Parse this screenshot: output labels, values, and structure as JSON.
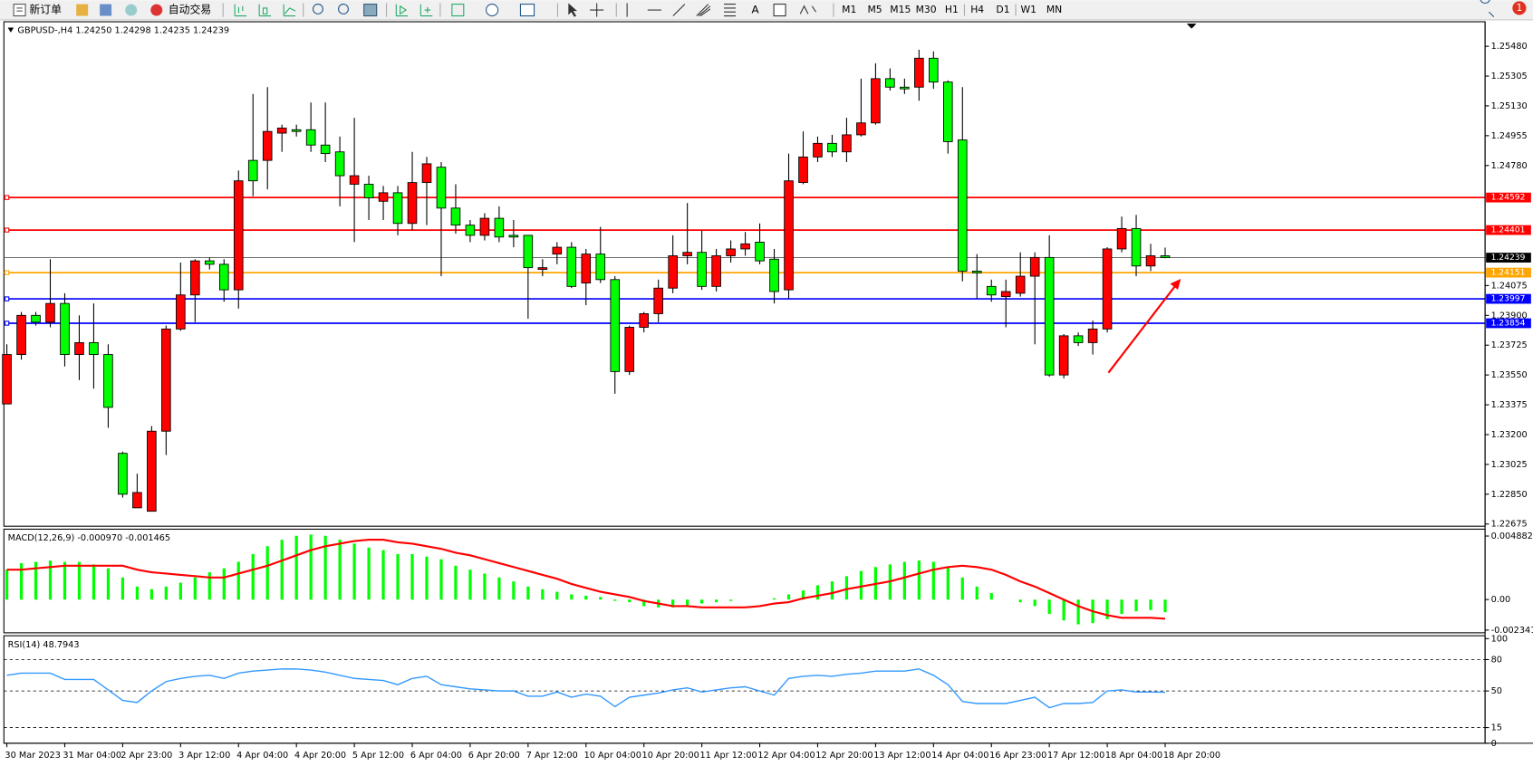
{
  "toolbar": {
    "new_order": "新订单",
    "auto_trading": "自动交易",
    "text_tool": "A",
    "timeframes": [
      "M1",
      "M5",
      "M15",
      "M30",
      "H1",
      "H4",
      "D1",
      "W1",
      "MN"
    ],
    "notifications": 1
  },
  "chart_data": [
    {
      "type": "candlestick",
      "title": "GBPUSD-,H4  1.24250 1.24298 1.24235 1.24239",
      "categories": [
        "30 Mar 2023",
        null,
        null,
        null,
        "31 Mar 04:00",
        null,
        null,
        null,
        "2 Apr 23:00",
        null,
        null,
        null,
        "3 Apr 12:00",
        null,
        null,
        null,
        "4 Apr 04:00",
        null,
        null,
        null,
        "4 Apr 20:00",
        null,
        null,
        null,
        "5 Apr 12:00",
        null,
        null,
        null,
        "6 Apr 04:00",
        null,
        null,
        null,
        "6 Apr 20:00",
        null,
        null,
        null,
        "7 Apr 12:00",
        null,
        null,
        null,
        "10 Apr 04:00",
        null,
        null,
        null,
        "10 Apr 20:00",
        null,
        null,
        null,
        "11 Apr 12:00",
        null,
        null,
        null,
        "12 Apr 04:00",
        null,
        null,
        null,
        "12 Apr 20:00",
        null,
        null,
        null,
        "13 Apr 12:00",
        null,
        null,
        null,
        "14 Apr 04:00",
        null,
        null,
        null,
        "16 Apr 23:00",
        null,
        null,
        null,
        "17 Apr 12:00",
        null,
        null,
        null,
        "18 Apr 04:00",
        null,
        null,
        null,
        "18 Apr 20:00"
      ],
      "open": [
        1.2338,
        1.2367,
        1.239,
        1.2386,
        1.2397,
        1.2367,
        1.2374,
        1.2367,
        1.2309,
        1.2277,
        1.2275,
        1.2322,
        1.2382,
        1.2402,
        1.2422,
        1.242,
        1.2405,
        1.2481,
        1.2481,
        1.2497,
        1.2499,
        1.2499,
        1.249,
        1.2486,
        1.2467,
        1.2467,
        1.2457,
        1.2462,
        1.2444,
        1.2468,
        1.2477,
        1.2453,
        1.2443,
        1.2437,
        1.2447,
        1.2437,
        1.2437,
        1.2417,
        1.2426,
        1.243,
        1.2409,
        1.2426,
        1.2411,
        1.2357,
        1.2383,
        1.2391,
        1.2406,
        1.2425,
        1.2427,
        1.2407,
        1.2425,
        1.2429,
        1.2433,
        1.2423,
        1.2405,
        1.2468,
        1.2483,
        1.2491,
        1.2486,
        1.2496,
        1.2503,
        1.2529,
        1.2524,
        1.2524,
        1.2541,
        1.2527,
        1.2493,
        1.2416,
        1.2407,
        1.2401,
        1.2403,
        1.2413,
        1.2424,
        1.2355,
        1.2378,
        1.2374,
        1.2382,
        1.2429,
        1.2441,
        1.2419,
        1.2425
      ],
      "high": [
        1.2373,
        1.2392,
        1.2392,
        1.2423,
        1.2403,
        1.239,
        1.2397,
        1.2373,
        1.231,
        1.2297,
        1.2325,
        1.2384,
        1.2421,
        1.2423,
        1.2424,
        1.2423,
        1.2475,
        1.252,
        1.2524,
        1.2502,
        1.2502,
        1.2515,
        1.2515,
        1.2495,
        1.2506,
        1.2472,
        1.2466,
        1.2466,
        1.2486,
        1.2483,
        1.248,
        1.2467,
        1.2446,
        1.245,
        1.2454,
        1.2446,
        1.2437,
        1.2423,
        1.2433,
        1.2433,
        1.2429,
        1.2442,
        1.2413,
        1.2384,
        1.2392,
        1.2411,
        1.2437,
        1.2456,
        1.244,
        1.2429,
        1.2434,
        1.2439,
        1.2444,
        1.2429,
        1.2485,
        1.2498,
        1.2495,
        1.2496,
        1.2506,
        1.2529,
        1.2538,
        1.2535,
        1.2529,
        1.2546,
        1.2545,
        1.2528,
        1.2524,
        1.2426,
        1.2411,
        1.2411,
        1.2427,
        1.2427,
        1.2437,
        1.2379,
        1.238,
        1.2387,
        1.243,
        1.2448,
        1.2449,
        1.2432,
        1.24298
      ],
      "low": [
        1.2338,
        1.2364,
        1.2384,
        1.2383,
        1.236,
        1.2352,
        1.2347,
        1.2324,
        1.2283,
        1.2277,
        1.2275,
        1.2308,
        1.2381,
        1.2386,
        1.2417,
        1.2398,
        1.2394,
        1.246,
        1.2464,
        1.2486,
        1.2495,
        1.2486,
        1.248,
        1.2454,
        1.2433,
        1.2446,
        1.2446,
        1.2437,
        1.244,
        1.2443,
        1.2413,
        1.2438,
        1.2433,
        1.2434,
        1.2433,
        1.243,
        1.2388,
        1.2413,
        1.242,
        1.2406,
        1.2396,
        1.2409,
        1.2344,
        1.2355,
        1.238,
        1.2386,
        1.2403,
        1.242,
        1.2405,
        1.2404,
        1.2421,
        1.2425,
        1.242,
        1.2397,
        1.24,
        1.2467,
        1.248,
        1.2483,
        1.248,
        1.2495,
        1.2502,
        1.2522,
        1.252,
        1.2516,
        1.2523,
        1.2485,
        1.241,
        1.24,
        1.2398,
        1.2383,
        1.2401,
        1.2373,
        1.2354,
        1.2353,
        1.2372,
        1.2367,
        1.238,
        1.2427,
        1.2413,
        1.2416,
        1.24235
      ],
      "close": [
        1.2367,
        1.239,
        1.2386,
        1.2397,
        1.2367,
        1.2374,
        1.2367,
        1.2336,
        1.2285,
        1.2286,
        1.2322,
        1.2382,
        1.2402,
        1.2422,
        1.242,
        1.2405,
        1.2469,
        1.2469,
        1.2498,
        1.25,
        1.2498,
        1.249,
        1.2485,
        1.2472,
        1.2472,
        1.2459,
        1.2462,
        1.2444,
        1.2468,
        1.2479,
        1.2453,
        1.2443,
        1.2437,
        1.2447,
        1.2436,
        1.2436,
        1.2418,
        1.2418,
        1.243,
        1.2407,
        1.2426,
        1.2411,
        1.2357,
        1.2383,
        1.2391,
        1.2406,
        1.2425,
        1.2427,
        1.2407,
        1.2425,
        1.2429,
        1.2432,
        1.2422,
        1.2404,
        1.2469,
        1.2483,
        1.2491,
        1.2486,
        1.2496,
        1.2503,
        1.2529,
        1.2524,
        1.2523,
        1.2541,
        1.2527,
        1.2492,
        1.2416,
        1.2415,
        1.2402,
        1.2404,
        1.2413,
        1.2424,
        1.2355,
        1.2378,
        1.2374,
        1.2382,
        1.2429,
        1.2441,
        1.2419,
        1.2425,
        1.24239
      ],
      "up_color": "#ff0000",
      "down_color": "#00ff00",
      "ylim": [
        1.22662,
        1.25624
      ],
      "yticks": [
        {
          "value": 1.2548,
          "label": "1.25480"
        },
        {
          "value": 1.25305,
          "label": "1.25305"
        },
        {
          "value": 1.2513,
          "label": "1.25130"
        },
        {
          "value": 1.24955,
          "label": "1.24955"
        },
        {
          "value": 1.2478,
          "label": "1.24780"
        },
        {
          "value": 1.24075,
          "label": "1.24075"
        },
        {
          "value": 1.239,
          "label": "1.23900"
        },
        {
          "value": 1.23725,
          "label": "1.23725"
        },
        {
          "value": 1.2355,
          "label": "1.23550"
        },
        {
          "value": 1.23375,
          "label": "1.23375"
        },
        {
          "value": 1.232,
          "label": "1.23200"
        },
        {
          "value": 1.23025,
          "label": "1.23025"
        },
        {
          "value": 1.2285,
          "label": "1.22850"
        },
        {
          "value": 1.22675,
          "label": "1.22675"
        }
      ],
      "last_price": 1.24239,
      "levels": [
        {
          "value": 1.24592,
          "color": "#ff0000"
        },
        {
          "value": 1.24401,
          "color": "#ff0000"
        },
        {
          "value": 1.24151,
          "color": "#ffa500"
        },
        {
          "value": 1.23997,
          "color": "#0000ff"
        },
        {
          "value": 1.23854,
          "color": "#0000ff"
        }
      ]
    },
    {
      "type": "macd",
      "title": "MACD(12,26,9) -0.000970 -0.001465",
      "ylim": [
        -0.00255,
        0.00541
      ],
      "yticks": [
        0.004882,
        {
          "value": 0,
          "label": "0.00"
        },
        -0.002341
      ],
      "series": [
        {
          "style": "histogram",
          "color": "#00ff00",
          "values": [
            0.0023,
            0.0028,
            0.0029,
            0.003,
            0.0029,
            0.0029,
            0.0027,
            0.0024,
            0.0017,
            0.001,
            0.0008,
            0.001,
            0.0013,
            0.0017,
            0.0021,
            0.0024,
            0.0029,
            0.0035,
            0.0041,
            0.0046,
            0.0049,
            0.005,
            0.0049,
            0.0046,
            0.0043,
            0.004,
            0.0038,
            0.0035,
            0.0035,
            0.0033,
            0.0031,
            0.0026,
            0.0023,
            0.002,
            0.0017,
            0.0014,
            0.001,
            0.0008,
            0.0006,
            0.0004,
            0.0003,
            0.0002,
            -0.0001,
            -0.0002,
            -0.0005,
            -0.0006,
            -0.0006,
            -0.0005,
            -0.0003,
            -0.0002,
            -0.0001,
            0.0,
            0.0,
            0.0001,
            0.0004,
            0.0007,
            0.0011,
            0.0014,
            0.0018,
            0.0022,
            0.0025,
            0.0027,
            0.0029,
            0.003,
            0.0029,
            0.0025,
            0.0017,
            0.001,
            0.0005,
            0.0,
            -0.0002,
            -0.0005,
            -0.0011,
            -0.0016,
            -0.0019,
            -0.0018,
            -0.0015,
            -0.0011,
            -0.0009,
            -0.0008,
            -0.00097
          ]
        },
        {
          "style": "line",
          "color": "#ff0000",
          "values": [
            0.0023,
            0.0023,
            0.0024,
            0.0025,
            0.0026,
            0.0026,
            0.0026,
            0.0026,
            0.0026,
            0.0023,
            0.0021,
            0.002,
            0.0019,
            0.0018,
            0.0017,
            0.0017,
            0.002,
            0.0023,
            0.0026,
            0.003,
            0.0034,
            0.0038,
            0.0041,
            0.0043,
            0.0045,
            0.0046,
            0.0046,
            0.0044,
            0.0043,
            0.0041,
            0.0039,
            0.0036,
            0.0034,
            0.0031,
            0.0028,
            0.0025,
            0.0022,
            0.0019,
            0.0016,
            0.0012,
            0.0009,
            0.0006,
            0.0004,
            0.0002,
            -0.0001,
            -0.0003,
            -0.0005,
            -0.0005,
            -0.0006,
            -0.0006,
            -0.0006,
            -0.0006,
            -0.0005,
            -0.0003,
            -0.0002,
            0.0001,
            0.0003,
            0.0005,
            0.0008,
            0.001,
            0.0012,
            0.0014,
            0.0017,
            0.002,
            0.0023,
            0.0025,
            0.0026,
            0.0025,
            0.0023,
            0.0019,
            0.0014,
            0.001,
            0.0005,
            0.0,
            -0.0005,
            -0.0009,
            -0.0012,
            -0.0014,
            -0.0014,
            -0.0014,
            -0.001465
          ]
        }
      ]
    },
    {
      "type": "rsi",
      "title": "RSI(14) 48.7943",
      "ylim": [
        0,
        102.8
      ],
      "yticks": [
        100,
        80,
        50,
        15,
        0
      ],
      "levels": [
        80,
        50,
        15
      ],
      "series": [
        {
          "style": "line",
          "color": "#3399ff",
          "values": [
            65,
            67,
            67,
            67,
            61,
            61,
            61,
            51,
            41,
            39,
            50,
            59,
            62,
            64,
            65,
            62,
            67,
            69,
            70,
            71,
            71,
            70,
            68,
            65,
            62,
            61,
            60,
            56,
            62,
            64,
            56,
            54,
            52,
            51,
            50,
            50,
            45,
            45,
            49,
            44,
            47,
            45,
            35,
            44,
            46,
            48,
            51,
            53,
            49,
            51,
            53,
            54,
            50,
            46,
            62,
            64,
            65,
            64,
            66,
            67,
            69,
            69,
            69,
            71,
            65,
            56,
            40,
            38,
            38,
            38,
            41,
            44,
            34,
            38,
            38,
            39,
            50,
            51,
            49,
            49,
            48.7943
          ]
        }
      ]
    }
  ]
}
